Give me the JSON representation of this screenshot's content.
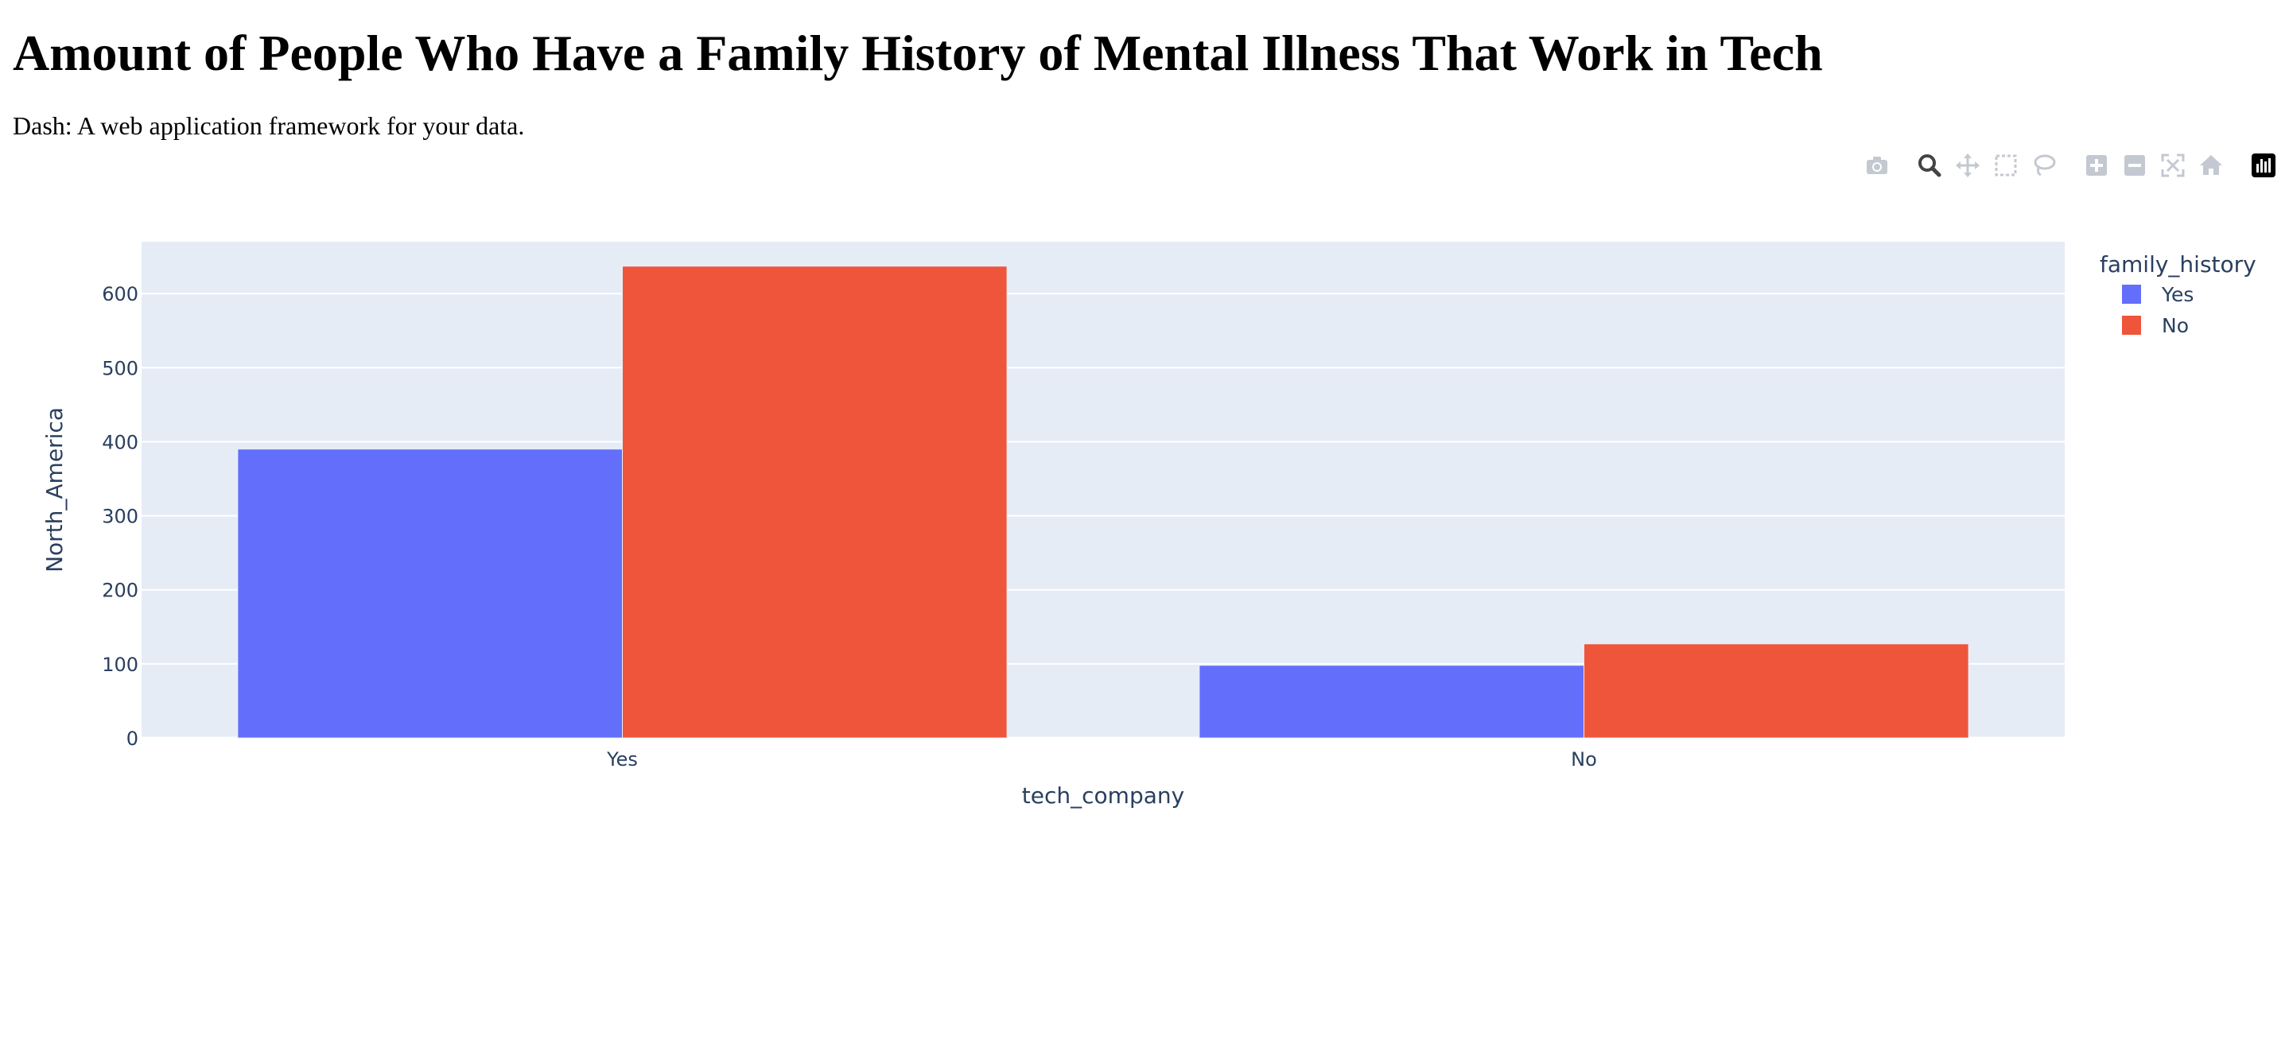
{
  "page": {
    "title": "Amount of People Who Have a Family History of Mental Illness That Work in Tech",
    "subtitle": "Dash: A web application framework for your data."
  },
  "modebar": {
    "buttons": [
      {
        "name": "camera-icon",
        "label": "Download plot as a png"
      },
      {
        "name": "zoom-icon",
        "label": "Zoom",
        "active": true
      },
      {
        "name": "pan-icon",
        "label": "Pan"
      },
      {
        "name": "box-select-icon",
        "label": "Box Select"
      },
      {
        "name": "lasso-select-icon",
        "label": "Lasso Select"
      },
      {
        "name": "zoom-in-icon",
        "label": "Zoom in"
      },
      {
        "name": "zoom-out-icon",
        "label": "Zoom out"
      },
      {
        "name": "autoscale-icon",
        "label": "Autoscale"
      },
      {
        "name": "reset-axes-icon",
        "label": "Reset axes"
      },
      {
        "name": "plotly-logo-icon",
        "label": "Produced with Plotly"
      }
    ]
  },
  "chart_data": {
    "type": "bar",
    "barmode": "group",
    "categories": [
      "Yes",
      "No"
    ],
    "series": [
      {
        "name": "Yes",
        "color": "#636efa",
        "values": [
          390,
          98
        ]
      },
      {
        "name": "No",
        "color": "#ef553b",
        "values": [
          637,
          127
        ]
      }
    ],
    "xlabel": "tech_company",
    "ylabel": "North_America",
    "ylim": [
      0,
      670
    ],
    "yticks": [
      0,
      100,
      200,
      300,
      400,
      500,
      600
    ],
    "legend_title": "family_history",
    "legend_position": "top-right",
    "grid": true,
    "plot_bg": "#e5ecf6",
    "text_color": "#2a3f5f"
  }
}
